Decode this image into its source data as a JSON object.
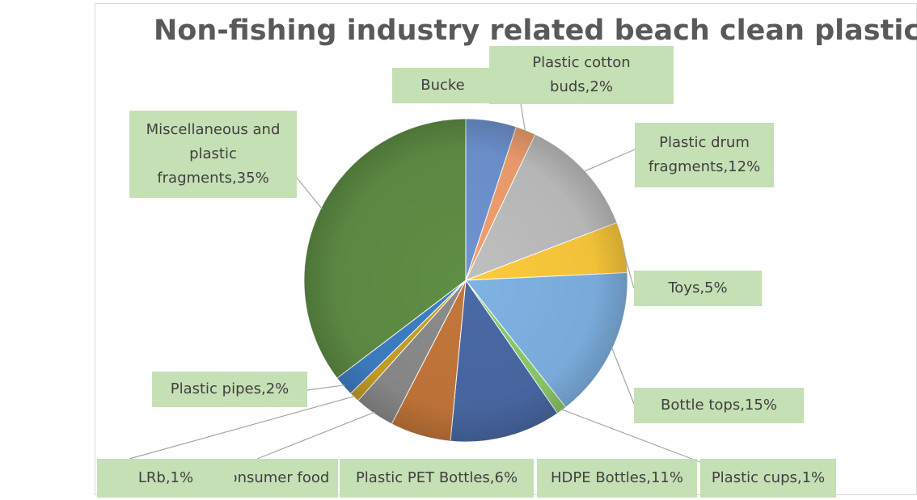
{
  "chart_data": {
    "type": "pie",
    "title": "Non-fishing industry related beach clean plastic",
    "slices": [
      {
        "label": "Bucket",
        "display": "Bucke",
        "value": 5,
        "color": "#6f94d2"
      },
      {
        "label": "Plastic cotton buds",
        "display": "Plastic cotton\nbuds,2%",
        "value": 2,
        "color": "#f2a06e"
      },
      {
        "label": "Plastic drum fragments",
        "display": "Plastic drum\nfragments,12%",
        "value": 12,
        "color": "#bfbfbf"
      },
      {
        "label": "Toys",
        "display": "Toys,5%",
        "value": 5,
        "color": "#fdcb3b"
      },
      {
        "label": "Bottle tops",
        "display": "Bottle tops,15%",
        "value": 15,
        "color": "#7fb3e4"
      },
      {
        "label": "Plastic cups",
        "display": "Plastic cups,1%",
        "value": 1,
        "color": "#8ccd6a"
      },
      {
        "label": "HDPE Bottles",
        "display": "HDPE Bottles,11%",
        "value": 11,
        "color": "#4a6aa6"
      },
      {
        "label": "Plastic PET Bottles",
        "display": "Plastic PET Bottles,6%",
        "value": 6,
        "color": "#c5773a"
      },
      {
        "label": "Plastic consumer food packaging",
        "display": "Plastic consumer food",
        "value": 4,
        "color": "#8c8c8c"
      },
      {
        "label": "LRb",
        "display": "LRb,1%",
        "value": 1,
        "color": "#c9a227"
      },
      {
        "label": "Plastic pipes",
        "display": "Plastic pipes,2%",
        "value": 2,
        "color": "#3f7fc6"
      },
      {
        "label": "Miscellaneous and plastic fragments",
        "display": "Miscellaneous and\nplastic\nfragments,35%",
        "value": 35,
        "color": "#5f8e45"
      }
    ],
    "legend": "none",
    "data_labels": "outside with leader lines"
  }
}
